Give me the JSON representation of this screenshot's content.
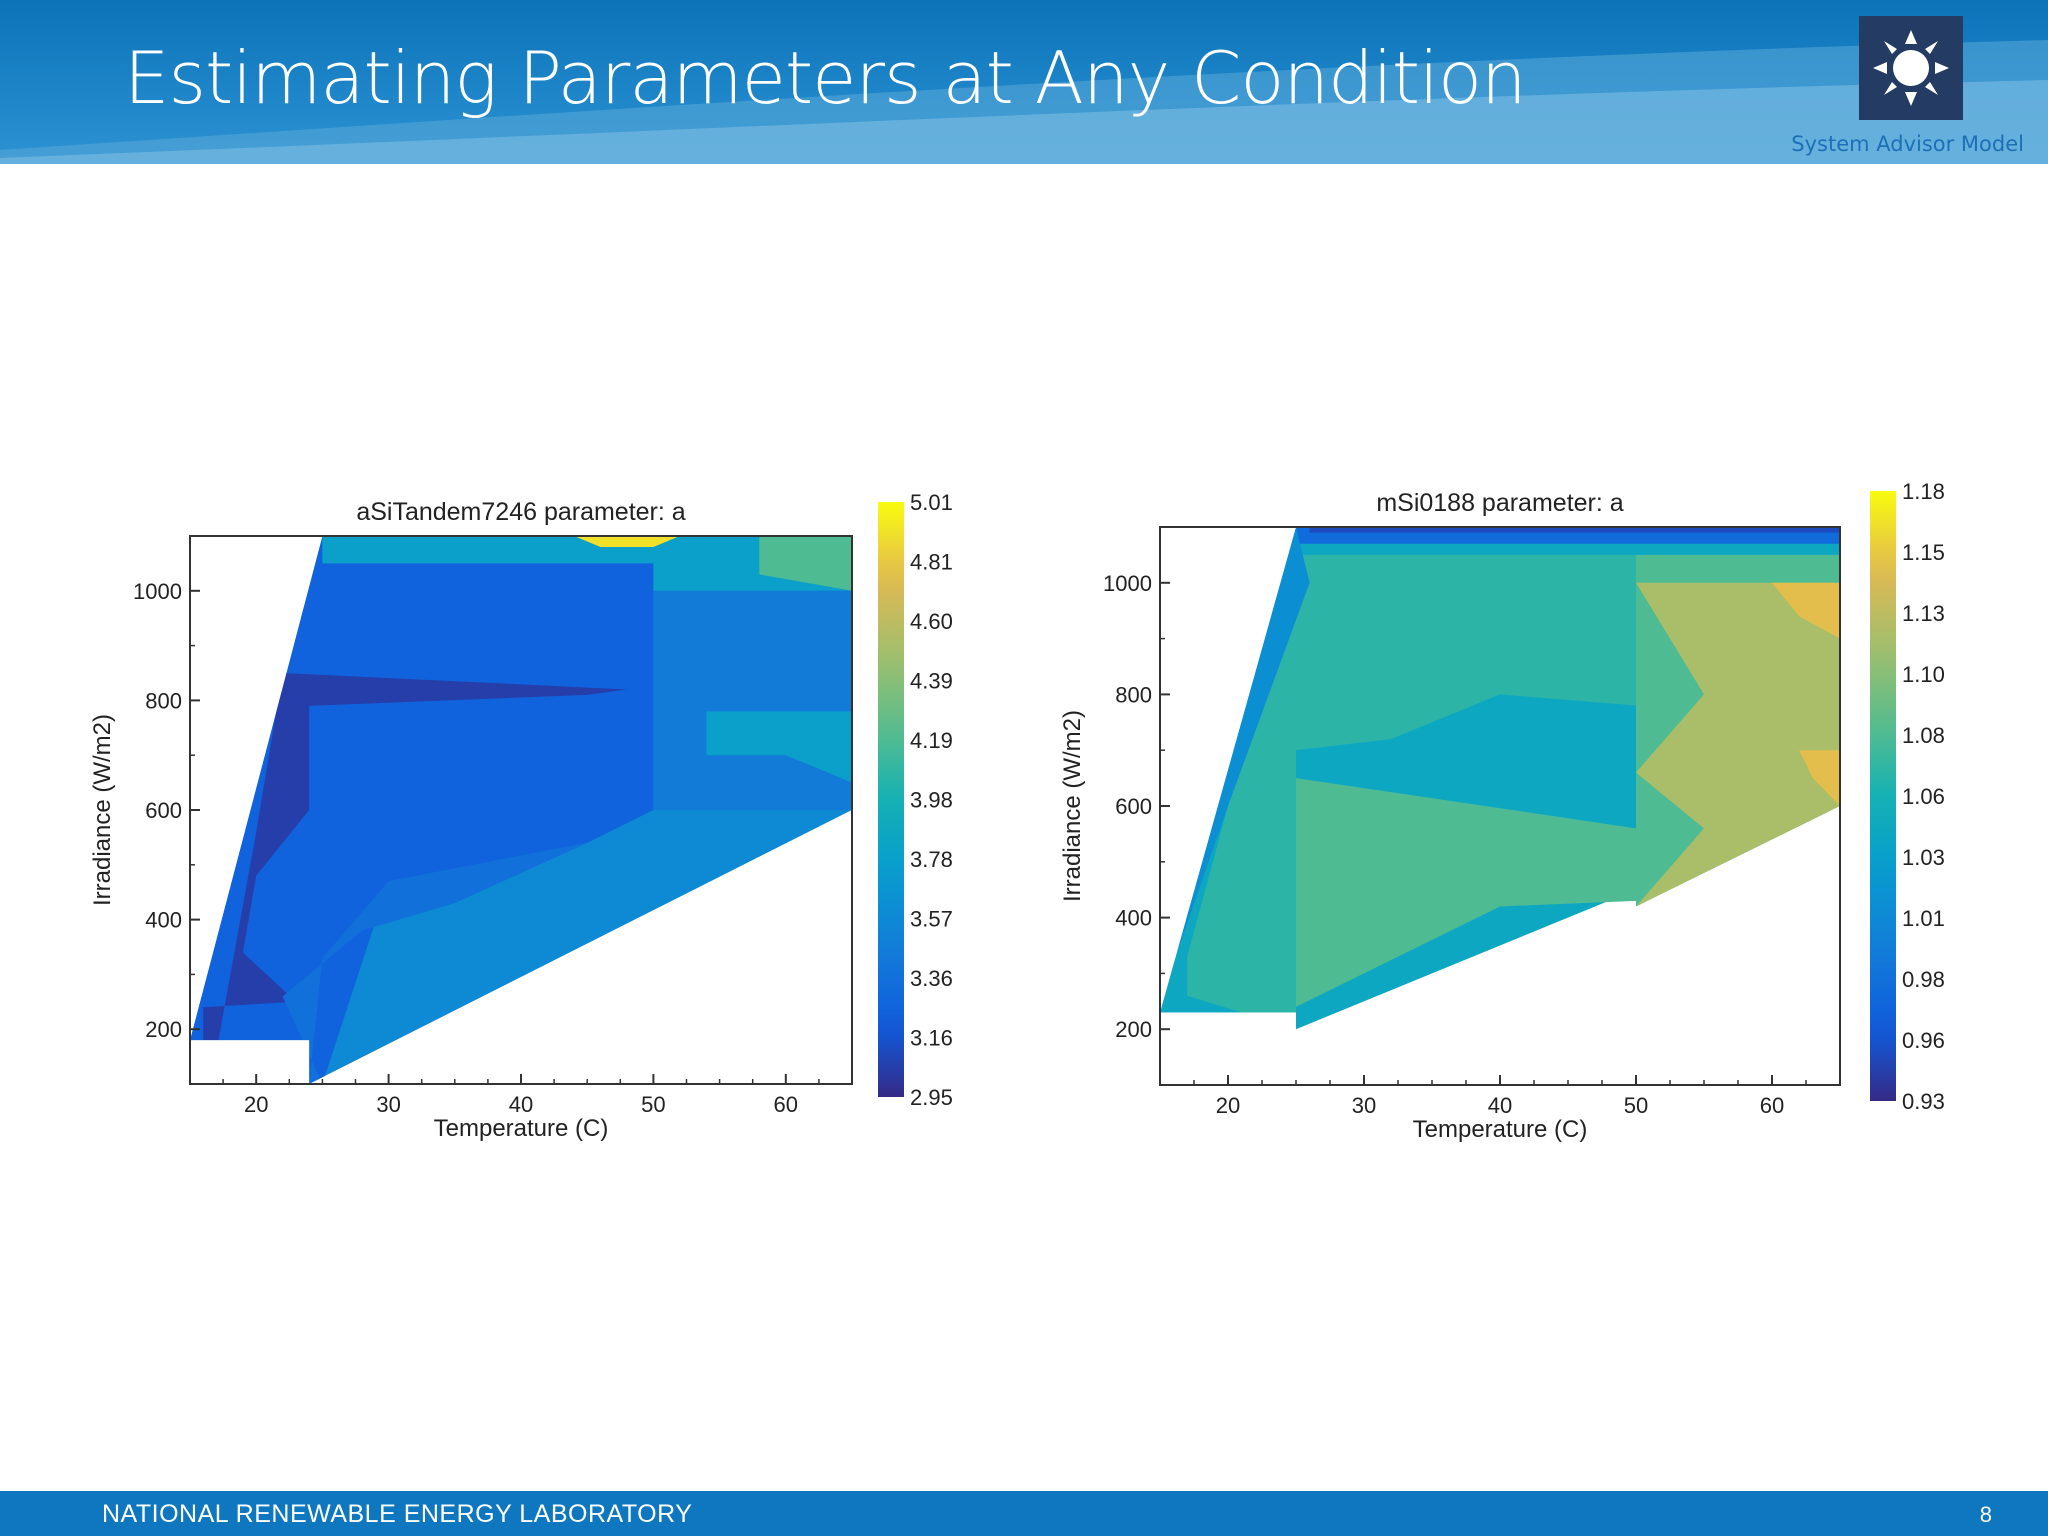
{
  "slide": {
    "title": "Estimating Parameters at Any Condition",
    "logo_subtitle": "System Advisor Model",
    "logo_icon": "sun-icon",
    "footer_org": "NATIONAL RENEWABLE ENERGY LABORATORY",
    "page_number": "8",
    "colors": {
      "header_blue": "#0d73b9",
      "footer_blue": "#0f77bf",
      "logo_navy": "#243b63"
    }
  },
  "chart_data": [
    {
      "type": "heatmap",
      "title": "aSiTandem7246 parameter: a",
      "xlabel": "Temperature (C)",
      "ylabel": "Irradiance (W/m2)",
      "xlim": [
        15,
        65
      ],
      "ylim": [
        100,
        1100
      ],
      "xticks": [
        "20",
        "30",
        "40",
        "50",
        "60"
      ],
      "yticks": [
        "200",
        "400",
        "600",
        "800",
        "1000"
      ],
      "colorbar_ticks": [
        "5.01",
        "4.81",
        "4.60",
        "4.39",
        "4.19",
        "3.98",
        "3.78",
        "3.57",
        "3.36",
        "3.16",
        "2.95"
      ],
      "colorbar_range": [
        2.95,
        5.01
      ],
      "regions": [
        {
          "value": 3.57,
          "points": [
            [
              25,
              1100
            ],
            [
              65,
              1100
            ],
            [
              65,
              600
            ],
            [
              24,
              100
            ],
            [
              15,
              100
            ],
            [
              15,
              180
            ]
          ]
        },
        {
          "value": 3.25,
          "points": [
            [
              25,
              1100
            ],
            [
              50,
              1100
            ],
            [
              50,
              600
            ],
            [
              45,
              540
            ],
            [
              30,
              470
            ],
            [
              25,
              100
            ],
            [
              15,
              100
            ],
            [
              15,
              180
            ]
          ]
        },
        {
          "value": 3.45,
          "points": [
            [
              50,
              1050
            ],
            [
              65,
              1050
            ],
            [
              65,
              600
            ],
            [
              50,
              600
            ]
          ]
        },
        {
          "value": 3.78,
          "points": [
            [
              25,
              1100
            ],
            [
              65,
              1100
            ],
            [
              65,
              1000
            ],
            [
              50,
              1000
            ],
            [
              50,
              1050
            ],
            [
              25,
              1050
            ]
          ]
        },
        {
          "value": 4.19,
          "points": [
            [
              58,
              1100
            ],
            [
              65,
              1100
            ],
            [
              65,
              1000
            ],
            [
              58,
              1030
            ]
          ]
        },
        {
          "value": 4.9,
          "points": [
            [
              44,
              1100
            ],
            [
              52,
              1100
            ],
            [
              50,
              1080
            ],
            [
              46,
              1080
            ]
          ]
        },
        {
          "value": 3.05,
          "points": [
            [
              22,
              850
            ],
            [
              48,
              820
            ],
            [
              45,
              810
            ],
            [
              24,
              790
            ],
            [
              24,
              600
            ],
            [
              20,
              480
            ],
            [
              19,
              340
            ],
            [
              23,
              250
            ],
            [
              16,
              240
            ],
            [
              16,
              170
            ],
            [
              17,
              160
            ],
            [
              20,
              560
            ]
          ]
        },
        {
          "value": 3.05,
          "points": [
            [
              15,
              180
            ],
            [
              19,
              170
            ],
            [
              19,
              130
            ],
            [
              15,
              130
            ]
          ]
        },
        {
          "value": 3.36,
          "points": [
            [
              30,
              470
            ],
            [
              45,
              540
            ],
            [
              35,
              430
            ],
            [
              28,
              380
            ],
            [
              22,
              260
            ],
            [
              25,
              100
            ],
            [
              24,
              100
            ],
            [
              25,
              330
            ]
          ]
        },
        {
          "value": 3.78,
          "points": [
            [
              54,
              780
            ],
            [
              65,
              780
            ],
            [
              65,
              650
            ],
            [
              60,
              700
            ],
            [
              54,
              700
            ]
          ]
        }
      ],
      "mask": {
        "upper_left_boundary": [
          [
            15,
            180
          ],
          [
            25,
            1100
          ]
        ],
        "lower_right_boundary": [
          [
            24,
            100
          ],
          [
            65,
            600
          ]
        ]
      }
    },
    {
      "type": "heatmap",
      "title": "mSi0188 parameter: a",
      "xlabel": "Temperature (C)",
      "ylabel": "Irradiance (W/m2)",
      "xlim": [
        15,
        65
      ],
      "ylim": [
        100,
        1100
      ],
      "xticks": [
        "20",
        "30",
        "40",
        "50",
        "60"
      ],
      "yticks": [
        "200",
        "400",
        "600",
        "800",
        "1000"
      ],
      "colorbar_ticks": [
        "1.18",
        "1.15",
        "1.13",
        "1.10",
        "1.08",
        "1.06",
        "1.03",
        "1.01",
        "0.98",
        "0.96",
        "0.93"
      ],
      "colorbar_range": [
        0.93,
        1.18
      ],
      "regions": [
        {
          "value": 1.04,
          "points": [
            [
              25,
              1100
            ],
            [
              65,
              1100
            ],
            [
              65,
              600
            ],
            [
              25,
              200
            ],
            [
              15,
              200
            ],
            [
              15,
              230
            ]
          ]
        },
        {
          "value": 1.065,
          "points": [
            [
              25,
              1050
            ],
            [
              50,
              1050
            ],
            [
              50,
              780
            ],
            [
              40,
              800
            ],
            [
              32,
              720
            ],
            [
              25,
              700
            ],
            [
              25,
              200
            ],
            [
              17,
              260
            ],
            [
              17,
              330
            ]
          ]
        },
        {
          "value": 1.08,
          "points": [
            [
              25,
              650
            ],
            [
              50,
              560
            ],
            [
              50,
              430
            ],
            [
              40,
              420
            ],
            [
              25,
              240
            ],
            [
              25,
              200
            ]
          ]
        },
        {
          "value": 1.08,
          "points": [
            [
              50,
              1050
            ],
            [
              65,
              1050
            ],
            [
              65,
              600
            ],
            [
              50,
              420
            ]
          ]
        },
        {
          "value": 1.12,
          "points": [
            [
              50,
              1000
            ],
            [
              65,
              1000
            ],
            [
              65,
              600
            ],
            [
              50,
              420
            ],
            [
              55,
              560
            ],
            [
              50,
              660
            ],
            [
              55,
              800
            ]
          ]
        },
        {
          "value": 1.15,
          "points": [
            [
              60,
              1000
            ],
            [
              65,
              1000
            ],
            [
              65,
              900
            ],
            [
              62,
              940
            ]
          ]
        },
        {
          "value": 1.15,
          "points": [
            [
              62,
              700
            ],
            [
              65,
              700
            ],
            [
              65,
              600
            ],
            [
              63,
              650
            ]
          ]
        },
        {
          "value": 0.975,
          "points": [
            [
              25,
              1100
            ],
            [
              65,
              1100
            ],
            [
              65,
              1070
            ],
            [
              25,
              1070
            ]
          ]
        },
        {
          "value": 0.95,
          "points": [
            [
              26,
              1100
            ],
            [
              65,
              1100
            ],
            [
              65,
              1090
            ],
            [
              26,
              1090
            ]
          ]
        },
        {
          "value": 1.01,
          "points": [
            [
              15,
              230
            ],
            [
              25,
              1100
            ],
            [
              26,
              1000
            ],
            [
              20,
              600
            ],
            [
              16,
              320
            ]
          ]
        }
      ],
      "mask": {
        "upper_left_boundary": [
          [
            15,
            230
          ],
          [
            25,
            1100
          ]
        ],
        "lower_right_boundary": [
          [
            25,
            200
          ],
          [
            65,
            600
          ]
        ]
      }
    }
  ]
}
